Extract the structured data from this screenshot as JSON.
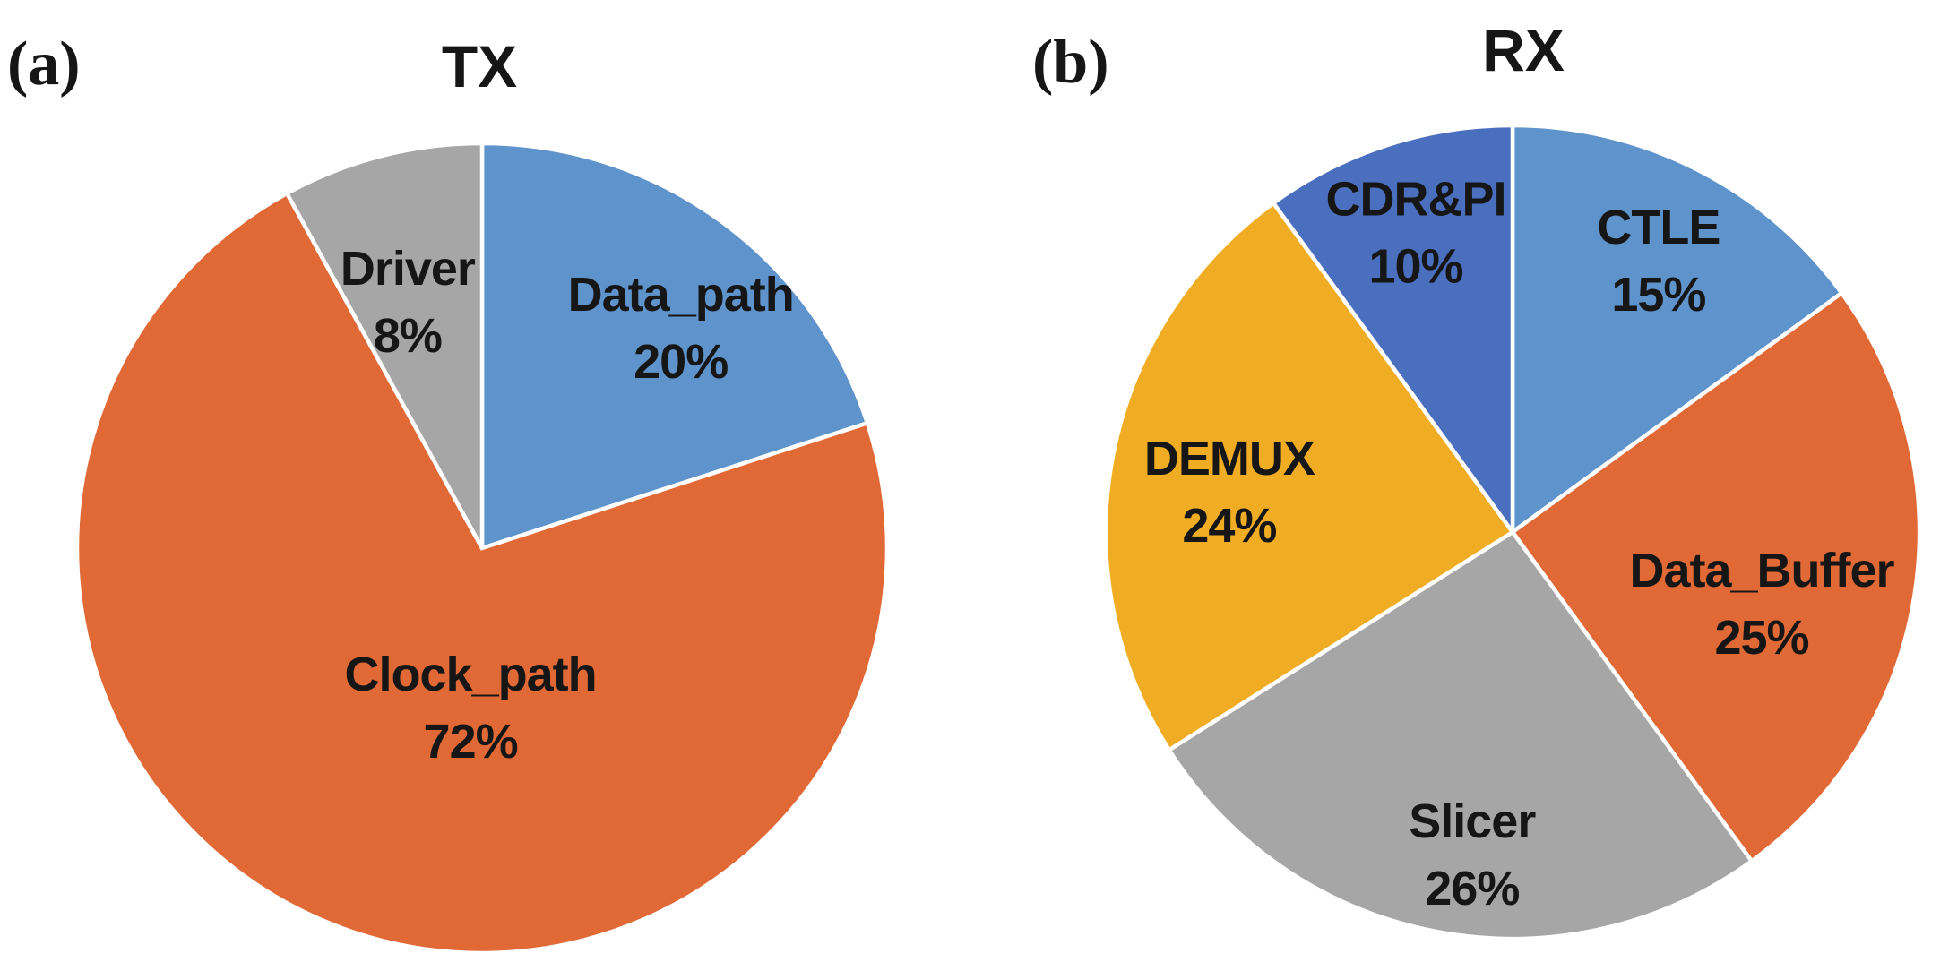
{
  "figure": {
    "background": "#FFFFFF",
    "text_color": "#161616",
    "slice_gap_color": "#FFFFFF",
    "panels": [
      {
        "tag": "(a)"
      },
      {
        "tag": "(b)"
      }
    ]
  },
  "chart_data": [
    {
      "type": "pie",
      "title": "TX",
      "start_angle_deg": 0,
      "direction": "clockwise",
      "legend": "none",
      "data_labels": "name and percent inside slices",
      "slices": [
        {
          "label": "Data_path",
          "value": 20,
          "pct_label": "20%",
          "color": "#5E93CB"
        },
        {
          "label": "Clock_path",
          "value": 72,
          "pct_label": "72%",
          "color": "#E06936"
        },
        {
          "label": "Driver",
          "value": 8,
          "pct_label": "8%",
          "color": "#A6A6A6"
        }
      ]
    },
    {
      "type": "pie",
      "title": "RX",
      "start_angle_deg": 0,
      "direction": "clockwise",
      "legend": "none",
      "data_labels": "name and percent inside slices",
      "slices": [
        {
          "label": "CTLE",
          "value": 15,
          "pct_label": "15%",
          "color": "#5E93CB"
        },
        {
          "label": "Data_Buffer",
          "value": 25,
          "pct_label": "25%",
          "color": "#E06936"
        },
        {
          "label": "Slicer",
          "value": 26,
          "pct_label": "26%",
          "color": "#A6A6A6"
        },
        {
          "label": "DEMUX",
          "value": 24,
          "pct_label": "24%",
          "color": "#F0AD23"
        },
        {
          "label": "CDR&PI",
          "value": 10,
          "pct_label": "10%",
          "color": "#4B6FBF"
        }
      ]
    }
  ]
}
